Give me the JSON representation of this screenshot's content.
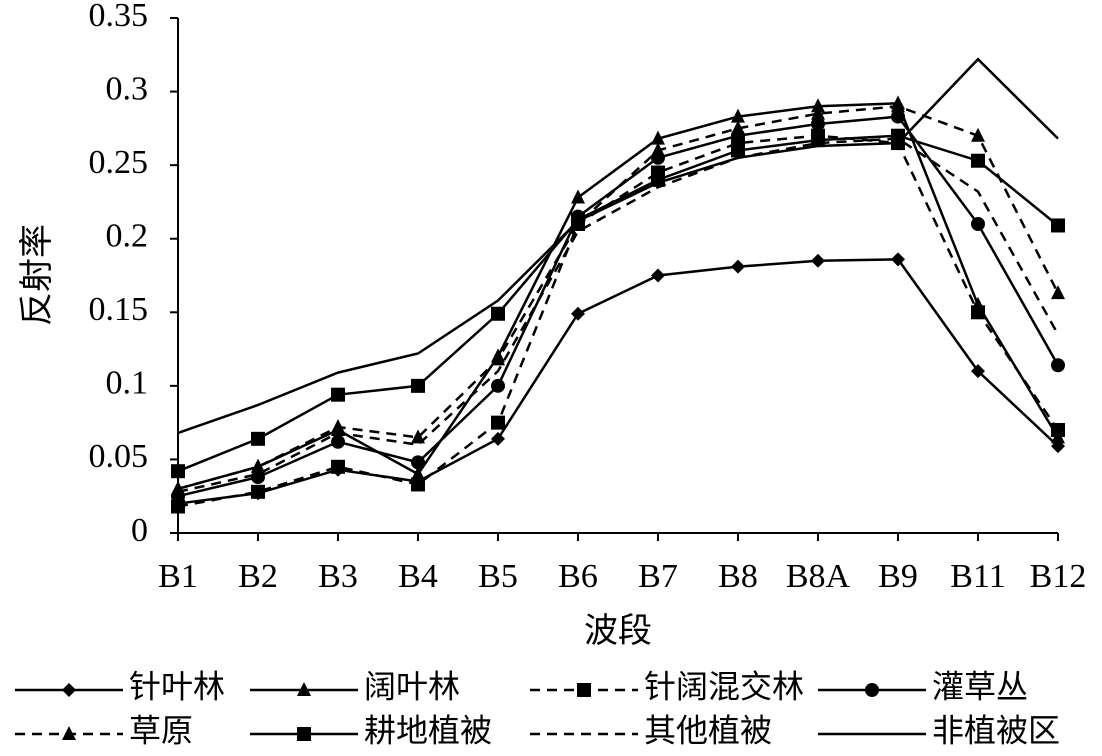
{
  "chart_data": {
    "type": "line",
    "x_label": "波段",
    "y_label": "反射率",
    "categories": [
      "B1",
      "B2",
      "B3",
      "B4",
      "B5",
      "B6",
      "B7",
      "B8",
      "B8A",
      "B9",
      "B11",
      "B12"
    ],
    "ylim": [
      0,
      0.35
    ],
    "yticks": [
      0,
      0.05,
      0.1,
      0.15,
      0.2,
      0.25,
      0.3,
      0.35
    ],
    "series": [
      {
        "name": "针叶林",
        "color": "#000000",
        "marker": "diamond",
        "dash": false,
        "values": [
          0.02,
          0.027,
          0.043,
          0.035,
          0.064,
          0.149,
          0.175,
          0.181,
          0.185,
          0.186,
          0.11,
          0.059
        ]
      },
      {
        "name": "阔叶林",
        "color": "#000000",
        "marker": "triangle",
        "dash": false,
        "values": [
          0.03,
          0.045,
          0.07,
          0.04,
          0.12,
          0.228,
          0.268,
          0.283,
          0.29,
          0.292,
          0.155,
          0.065
        ]
      },
      {
        "name": "针阔混交林",
        "color": "#000000",
        "marker": "square",
        "dash": true,
        "values": [
          0.018,
          0.028,
          0.045,
          0.033,
          0.075,
          0.21,
          0.245,
          0.265,
          0.27,
          0.265,
          0.15,
          0.07
        ]
      },
      {
        "name": "灌草丛",
        "color": "#000000",
        "marker": "circle",
        "dash": false,
        "values": [
          0.025,
          0.038,
          0.062,
          0.048,
          0.1,
          0.215,
          0.255,
          0.27,
          0.278,
          0.283,
          0.21,
          0.114
        ]
      },
      {
        "name": "草原",
        "color": "#000000",
        "marker": "triangle",
        "dash": true,
        "values": [
          0.03,
          0.045,
          0.072,
          0.065,
          0.118,
          0.21,
          0.26,
          0.275,
          0.285,
          0.29,
          0.27,
          0.163
        ]
      },
      {
        "name": "耕地植被",
        "color": "#000000",
        "marker": "square",
        "dash": false,
        "values": [
          0.042,
          0.064,
          0.094,
          0.1,
          0.149,
          0.213,
          0.24,
          0.26,
          0.267,
          0.27,
          0.253,
          0.209
        ]
      },
      {
        "name": "其他植被",
        "color": "#000000",
        "marker": "none",
        "dash": true,
        "values": [
          0.028,
          0.04,
          0.068,
          0.06,
          0.11,
          0.205,
          0.235,
          0.255,
          0.265,
          0.268,
          0.232,
          0.135
        ]
      },
      {
        "name": "非植被区",
        "color": "#000000",
        "marker": "none",
        "dash": false,
        "values": [
          0.068,
          0.087,
          0.109,
          0.122,
          0.158,
          0.212,
          0.238,
          0.255,
          0.263,
          0.265,
          0.322,
          0.268
        ]
      }
    ]
  }
}
